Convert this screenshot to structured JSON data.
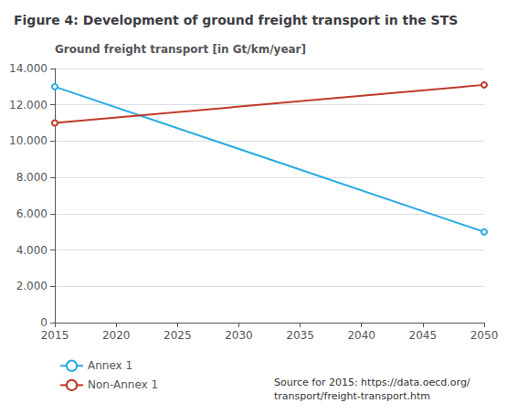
{
  "chart_data": {
    "type": "line",
    "title": "Figure 4: Development of ground freight transport in the STS",
    "ylabel": "Ground freight transport [in Gt/km/year]",
    "x": [
      2015,
      2050
    ],
    "series": [
      {
        "name": "Annex 1",
        "color": "#29abe2",
        "values": [
          13000,
          5000
        ]
      },
      {
        "name": "Non-Annex 1",
        "color": "#c0392b",
        "values": [
          11000,
          13100
        ]
      }
    ],
    "xlim": [
      2015,
      2050
    ],
    "xticks": [
      2015,
      2020,
      2025,
      2030,
      2035,
      2040,
      2045,
      2050
    ],
    "ylim": [
      0,
      14000
    ],
    "yticks": [
      0,
      {
        "value": 2000,
        "label": "2.000"
      },
      {
        "value": 4000,
        "label": "4.000"
      },
      {
        "value": 6000,
        "label": "6.000"
      },
      {
        "value": 8000,
        "label": "8.000"
      },
      {
        "value": 10000,
        "label": "10.000"
      },
      {
        "value": 12000,
        "label": "12.000"
      },
      {
        "value": 14000,
        "label": "14.000"
      }
    ],
    "grid": true,
    "legend": "bottom",
    "annotations": [
      "Source for 2015: https://data.oecd.org/\ntransport/freight-transport.htm"
    ]
  }
}
